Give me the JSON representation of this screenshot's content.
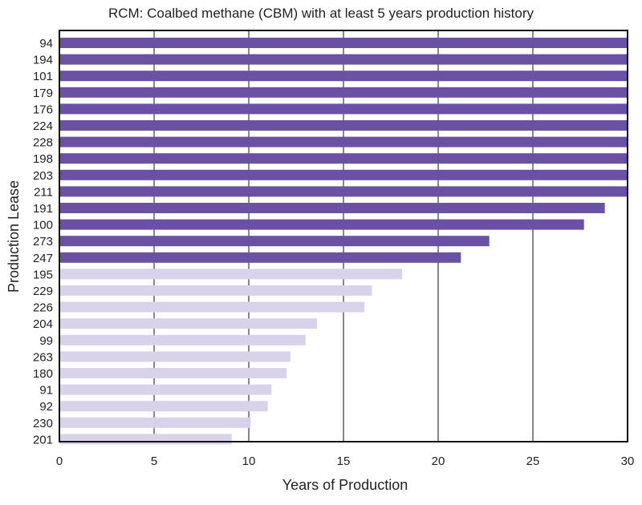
{
  "chart_data": {
    "type": "bar",
    "orientation": "horizontal",
    "title": "RCM: Coalbed methane (CBM) with at least 5 years production history",
    "xlabel": "Years of Production",
    "ylabel": "Production Lease",
    "xlim": [
      0,
      30
    ],
    "xticks": [
      0,
      5,
      10,
      15,
      20,
      25,
      30
    ],
    "grid": true,
    "colors": {
      "dark": "#6a51a3",
      "light": "#d8d2ea"
    },
    "categories": [
      "94",
      "194",
      "101",
      "179",
      "176",
      "224",
      "228",
      "198",
      "203",
      "211",
      "191",
      "100",
      "273",
      "247",
      "195",
      "229",
      "226",
      "204",
      "99",
      "263",
      "180",
      "91",
      "92",
      "230",
      "201"
    ],
    "values": [
      30,
      30,
      30,
      30,
      30,
      30,
      30,
      30,
      30,
      30,
      28.8,
      27.7,
      22.7,
      21.2,
      18.1,
      16.5,
      16.1,
      13.6,
      13.0,
      12.2,
      12.0,
      11.2,
      11.0,
      10.1,
      9.1
    ],
    "shade": [
      "dark",
      "dark",
      "dark",
      "dark",
      "dark",
      "dark",
      "dark",
      "dark",
      "dark",
      "dark",
      "dark",
      "dark",
      "dark",
      "dark",
      "light",
      "light",
      "light",
      "light",
      "light",
      "light",
      "light",
      "light",
      "light",
      "light",
      "light"
    ]
  }
}
